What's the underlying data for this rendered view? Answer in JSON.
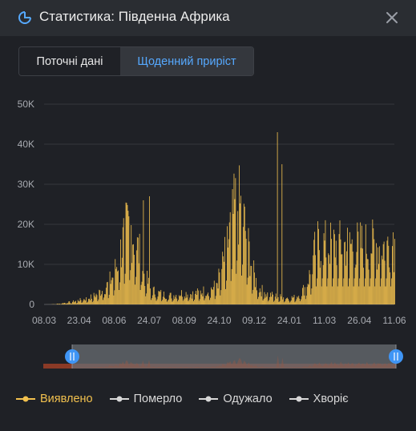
{
  "header": {
    "title": "Статистика: Південна Африка",
    "icon": "pie-chart-icon",
    "close_icon": "close-icon"
  },
  "tabs": [
    {
      "label": "Поточні дані",
      "active": false
    },
    {
      "label": "Щоденний приріст",
      "active": true
    }
  ],
  "colors": {
    "accent": "#f2c14e",
    "active_tab": "#56a9ff",
    "background": "#1f2126",
    "header": "#2a2d32",
    "inactive_legend": "#d8d8d8",
    "navigator_track": "#8a3a26"
  },
  "legend": [
    {
      "label": "Виявлено",
      "color": "#f2c14e",
      "active": true
    },
    {
      "label": "Померло",
      "color": "#d8d8d8",
      "active": false
    },
    {
      "label": "Одужало",
      "color": "#d8d8d8",
      "active": false
    },
    {
      "label": "Хворіє",
      "color": "#d8d8d8",
      "active": false
    }
  ],
  "chart_data": {
    "type": "bar",
    "title": "",
    "xlabel": "",
    "ylabel": "",
    "ylim": [
      0,
      50000
    ],
    "yticks": [
      "0",
      "10K",
      "20K",
      "30K",
      "40K",
      "50K"
    ],
    "xticks": [
      "08.03",
      "23.04",
      "08.06",
      "24.07",
      "08.09",
      "24.10",
      "09.12",
      "24.01",
      "11.03",
      "26.04",
      "11.06"
    ],
    "grid": true,
    "legend_position": "bottom",
    "series": [
      {
        "name": "Виявлено",
        "color": "#f2c14e",
        "weekly_avg": [
          0,
          10,
          50,
          150,
          300,
          400,
          600,
          800,
          1000,
          1300,
          1800,
          2500,
          3500,
          5000,
          8000,
          11500,
          13500,
          11000,
          8000,
          4500,
          2500,
          2000,
          1800,
          1500,
          1500,
          1700,
          2000,
          1800,
          1800,
          2000,
          2300,
          2500,
          3000,
          5000,
          8500,
          13000,
          17000,
          16000,
          11000,
          6000,
          3000,
          2200,
          1700,
          1500,
          1300,
          1200,
          1100,
          1200,
          1800,
          3000,
          5500,
          10000
        ],
        "peaks": [
          {
            "x": "2020-07-16",
            "value": 26000
          },
          {
            "x": "2020-07-24",
            "value": 27000
          },
          {
            "x": "2021-01-08",
            "value": 43000
          },
          {
            "x": "2021-01-14",
            "value": 35000
          },
          {
            "x": "2021-06-09",
            "value": 18000
          }
        ]
      }
    ]
  }
}
